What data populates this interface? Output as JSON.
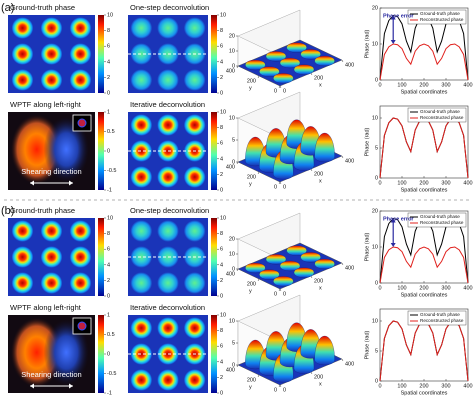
{
  "panels": [
    {
      "label": "(a)",
      "maps": [
        {
          "title": "Ground-truth phase",
          "clim": [
            0,
            10
          ],
          "cticks": [
            10,
            8,
            6,
            4,
            2,
            0
          ]
        },
        {
          "title": "One-step deconvolution",
          "clim": [
            0,
            10
          ],
          "cticks": [
            10,
            8,
            6,
            4,
            2,
            0
          ]
        },
        {
          "title": "WPTF along left-right",
          "clim": [
            -1,
            1
          ],
          "cticks": [
            1,
            0.5,
            0,
            -0.5,
            -1
          ],
          "note": "Shearing direction"
        },
        {
          "title": "Iterative deconvolution",
          "clim": [
            0,
            10
          ],
          "cticks": [
            10,
            8,
            6,
            4,
            2,
            0
          ]
        }
      ],
      "surfaces": [
        {
          "xlabel": "x",
          "ylabel": "y",
          "xlim": [
            0,
            400
          ],
          "ylim": [
            0,
            400
          ],
          "zlim": [
            0,
            20
          ],
          "xticks": [
            0,
            200,
            400
          ],
          "yticks": [
            0,
            200,
            400
          ],
          "zticks": [
            0,
            10,
            20
          ]
        },
        {
          "xlabel": "x",
          "ylabel": "y",
          "xlim": [
            0,
            400
          ],
          "ylim": [
            0,
            400
          ],
          "zlim": [
            0,
            10
          ],
          "xticks": [
            0,
            200,
            400
          ],
          "yticks": [
            0,
            200,
            400
          ],
          "zticks": [
            0,
            5,
            10
          ]
        }
      ],
      "charts": [
        {
          "type": "line",
          "xlabel": "Spatial coordinates",
          "ylabel": "Phase (rad)",
          "annotation": "Phase error",
          "legend": "upper right",
          "xlim": [
            0,
            400
          ],
          "ylim": [
            0,
            20
          ],
          "xticks": [
            0,
            100,
            200,
            300,
            400
          ],
          "yticks": [
            0,
            10,
            20
          ],
          "x": [
            0,
            20,
            40,
            60,
            80,
            100,
            120,
            140,
            160,
            180,
            200,
            220,
            240,
            260,
            280,
            300,
            320,
            340,
            360,
            380,
            400
          ],
          "series": [
            {
              "name": "Ground-truth phase",
              "color": "#000000",
              "values": [
                0,
                12.9,
                16.5,
                17.9,
                17.6,
                15.6,
                10.8,
                7.8,
                14.4,
                17.2,
                18,
                17.2,
                14.4,
                7.8,
                10.8,
                15.6,
                17.6,
                17.9,
                16.5,
                12.9,
                0
              ]
            },
            {
              "name": "Reconstructed phase",
              "color": "#e0201c",
              "values": [
                0,
                7.1,
                9.2,
                10,
                9.8,
                8.7,
                6,
                4.4,
                8,
                9.5,
                10,
                9.5,
                8,
                4.4,
                6,
                8.7,
                9.8,
                10,
                9.2,
                7.1,
                0
              ]
            }
          ]
        },
        {
          "type": "line",
          "xlabel": "Spatial coordinates",
          "ylabel": "Phase (rad)",
          "legend": "upper right",
          "xlim": [
            0,
            400
          ],
          "ylim": [
            0,
            12
          ],
          "xticks": [
            0,
            100,
            200,
            300,
            400
          ],
          "yticks": [
            0,
            5,
            10
          ],
          "x": [
            0,
            20,
            40,
            60,
            80,
            100,
            120,
            140,
            160,
            180,
            200,
            220,
            240,
            260,
            280,
            300,
            320,
            340,
            360,
            380,
            400
          ],
          "series": [
            {
              "name": "Ground-truth phase",
              "color": "#000000",
              "values": [
                0,
                7.1,
                9.2,
                10,
                9.8,
                8.7,
                6,
                4.4,
                8,
                9.5,
                10,
                9.5,
                8,
                4.4,
                6,
                8.7,
                9.8,
                10,
                9.2,
                7.1,
                0
              ]
            },
            {
              "name": "Reconstructed phase",
              "color": "#e0201c",
              "values": [
                0,
                7.1,
                9.2,
                10,
                9.8,
                8.7,
                6,
                4.4,
                8,
                9.5,
                10,
                9.5,
                8,
                4.4,
                6,
                8.7,
                9.8,
                10,
                9.2,
                7.1,
                0
              ]
            }
          ]
        }
      ]
    },
    {
      "label": "(b)",
      "maps": [
        {
          "title": "Ground-truth phase",
          "clim": [
            0,
            10
          ],
          "cticks": [
            10,
            8,
            6,
            4,
            2,
            0
          ]
        },
        {
          "title": "One-step deconvolution",
          "clim": [
            0,
            10
          ],
          "cticks": [
            10,
            8,
            6,
            4,
            2,
            0
          ]
        },
        {
          "title": "WPTF along left-right",
          "clim": [
            -1,
            1
          ],
          "cticks": [
            1,
            0.5,
            0,
            -0.5,
            -1
          ],
          "note": "Shearing direction"
        },
        {
          "title": "Iterative deconvolution",
          "clim": [
            0,
            10
          ],
          "cticks": [
            10,
            8,
            6,
            4,
            2,
            0
          ]
        }
      ],
      "surfaces": [
        {
          "xlabel": "x",
          "ylabel": "y",
          "xlim": [
            0,
            400
          ],
          "ylim": [
            0,
            400
          ],
          "zlim": [
            0,
            20
          ],
          "xticks": [
            0,
            200,
            400
          ],
          "yticks": [
            0,
            200,
            400
          ],
          "zticks": [
            0,
            10,
            20
          ]
        },
        {
          "xlabel": "x",
          "ylabel": "y",
          "xlim": [
            0,
            400
          ],
          "ylim": [
            0,
            400
          ],
          "zlim": [
            0,
            10
          ],
          "xticks": [
            0,
            200,
            400
          ],
          "yticks": [
            0,
            200,
            400
          ],
          "zticks": [
            0,
            5,
            10
          ]
        }
      ],
      "charts": [
        {
          "type": "line",
          "xlabel": "Spatial coordinates",
          "ylabel": "Phase (rad)",
          "annotation": "Phase error",
          "legend": "upper right",
          "xlim": [
            0,
            400
          ],
          "ylim": [
            0,
            20
          ],
          "xticks": [
            0,
            100,
            200,
            300,
            400
          ],
          "yticks": [
            0,
            10,
            20
          ],
          "x": [
            0,
            20,
            40,
            60,
            80,
            100,
            120,
            140,
            160,
            180,
            200,
            220,
            240,
            260,
            280,
            300,
            320,
            340,
            360,
            380,
            400
          ],
          "series": [
            {
              "name": "Ground-truth phase",
              "color": "#000000",
              "values": [
                0,
                12.9,
                16.5,
                17.9,
                17.6,
                15.6,
                10.8,
                7.8,
                14.4,
                17.2,
                18,
                17.2,
                14.4,
                7.8,
                10.8,
                15.6,
                17.6,
                17.9,
                16.5,
                12.9,
                0
              ]
            },
            {
              "name": "Reconstructed phase",
              "color": "#e0201c",
              "values": [
                0,
                7.1,
                9.2,
                10,
                9.8,
                8.7,
                6,
                4.4,
                8,
                9.5,
                10,
                9.5,
                8,
                4.4,
                6,
                8.7,
                9.8,
                10,
                9.2,
                7.1,
                0
              ]
            }
          ]
        },
        {
          "type": "line",
          "xlabel": "Spatial coordinates",
          "ylabel": "Phase (rad)",
          "legend": "upper right",
          "xlim": [
            0,
            400
          ],
          "ylim": [
            0,
            12
          ],
          "xticks": [
            0,
            100,
            200,
            300,
            400
          ],
          "yticks": [
            0,
            5,
            10
          ],
          "x": [
            0,
            20,
            40,
            60,
            80,
            100,
            120,
            140,
            160,
            180,
            200,
            220,
            240,
            260,
            280,
            300,
            320,
            340,
            360,
            380,
            400
          ],
          "series": [
            {
              "name": "Ground-truth phase",
              "color": "#000000",
              "values": [
                0,
                7.1,
                9.2,
                10,
                9.8,
                8.7,
                6,
                4.4,
                8,
                9.5,
                10,
                9.5,
                8,
                4.4,
                6,
                8.7,
                9.8,
                10,
                9.2,
                7.1,
                0
              ]
            },
            {
              "name": "Reconstructed phase",
              "color": "#e0201c",
              "values": [
                0,
                7.1,
                9.2,
                10,
                9.8,
                8.7,
                6,
                4.4,
                8,
                9.5,
                10,
                9.5,
                8,
                4.4,
                6,
                8.7,
                9.8,
                10,
                9.2,
                7.1,
                0
              ]
            }
          ]
        }
      ]
    }
  ]
}
